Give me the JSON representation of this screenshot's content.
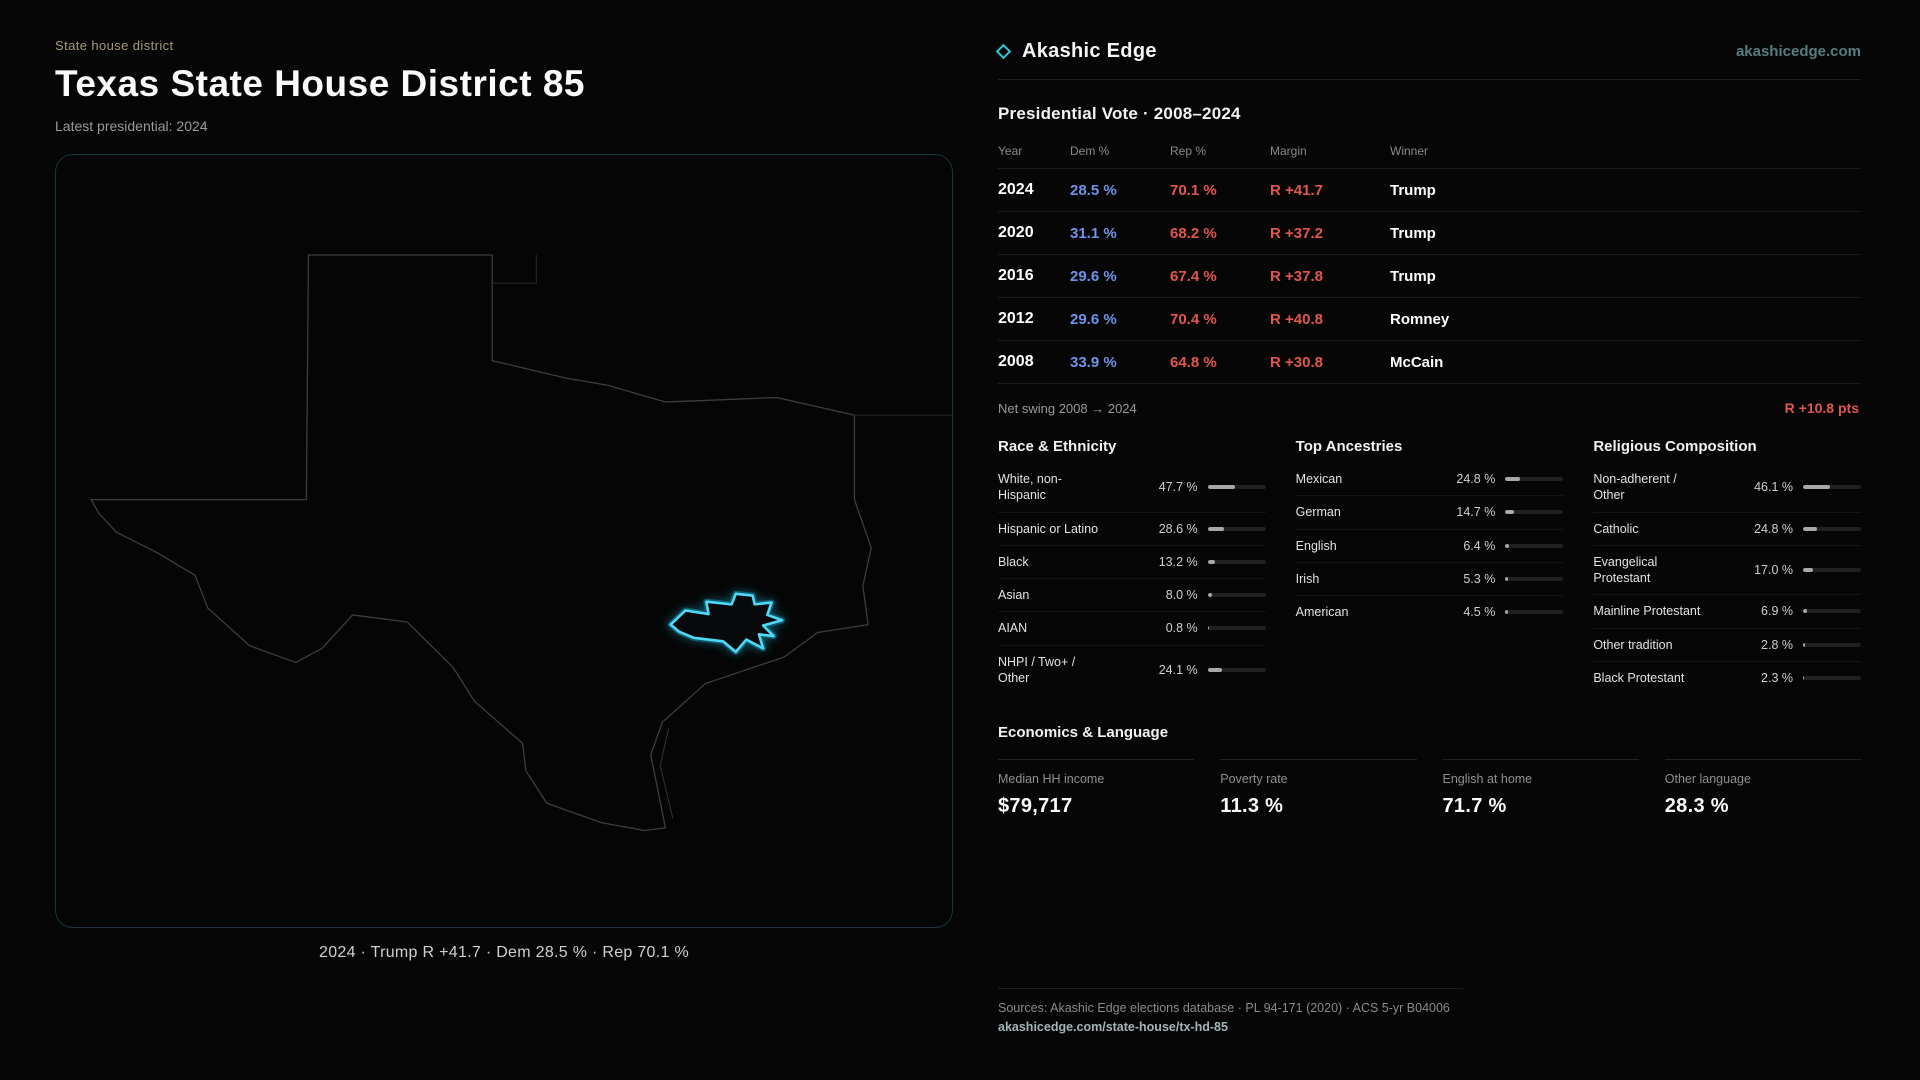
{
  "page": {
    "eyebrow": "State house district",
    "title": "Texas State House District 85",
    "subtitle": "Latest presidential: 2024",
    "map_caption": "2024 · Trump R +41.7 · Dem 28.5 % · Rep 70.1 %"
  },
  "brand": {
    "name": "Akashic Edge",
    "domain": "akashicedge.com"
  },
  "presidential": {
    "title": "Presidential Vote · 2008–2024",
    "columns": [
      "Year",
      "Dem %",
      "Rep %",
      "Margin",
      "Winner"
    ],
    "rows": [
      {
        "year": "2024",
        "dem": "28.5 %",
        "rep": "70.1 %",
        "margin": "R +41.7",
        "winner": "Trump"
      },
      {
        "year": "2020",
        "dem": "31.1 %",
        "rep": "68.2 %",
        "margin": "R +37.2",
        "winner": "Trump"
      },
      {
        "year": "2016",
        "dem": "29.6 %",
        "rep": "67.4 %",
        "margin": "R +37.8",
        "winner": "Trump"
      },
      {
        "year": "2012",
        "dem": "29.6 %",
        "rep": "70.4 %",
        "margin": "R +40.8",
        "winner": "Romney"
      },
      {
        "year": "2008",
        "dem": "33.9 %",
        "rep": "64.8 %",
        "margin": "R +30.8",
        "winner": "McCain"
      }
    ],
    "net_swing_label": "Net swing 2008 → 2024",
    "net_swing_value": "R +10.8 pts"
  },
  "demographics": {
    "race": {
      "title": "Race & Ethnicity",
      "rows": [
        {
          "label": "White, non-Hispanic",
          "value": "47.7 %",
          "pct": 47.7
        },
        {
          "label": "Hispanic or Latino",
          "value": "28.6 %",
          "pct": 28.6
        },
        {
          "label": "Black",
          "value": "13.2 %",
          "pct": 13.2
        },
        {
          "label": "Asian",
          "value": "8.0 %",
          "pct": 8.0
        },
        {
          "label": "AIAN",
          "value": "0.8 %",
          "pct": 0.8
        },
        {
          "label": "NHPI / Two+ / Other",
          "value": "24.1 %",
          "pct": 24.1
        }
      ]
    },
    "ancestries": {
      "title": "Top Ancestries",
      "rows": [
        {
          "label": "Mexican",
          "value": "24.8 %",
          "pct": 24.8
        },
        {
          "label": "German",
          "value": "14.7 %",
          "pct": 14.7
        },
        {
          "label": "English",
          "value": "6.4 %",
          "pct": 6.4
        },
        {
          "label": "Irish",
          "value": "5.3 %",
          "pct": 5.3
        },
        {
          "label": "American",
          "value": "4.5 %",
          "pct": 4.5
        }
      ]
    },
    "religion": {
      "title": "Religious Composition",
      "rows": [
        {
          "label": "Non-adherent / Other",
          "value": "46.1 %",
          "pct": 46.1
        },
        {
          "label": "Catholic",
          "value": "24.8 %",
          "pct": 24.8
        },
        {
          "label": "Evangelical Protestant",
          "value": "17.0 %",
          "pct": 17.0
        },
        {
          "label": "Mainline Protestant",
          "value": "6.9 %",
          "pct": 6.9
        },
        {
          "label": "Other tradition",
          "value": "2.8 %",
          "pct": 2.8
        },
        {
          "label": "Black Protestant",
          "value": "2.3 %",
          "pct": 2.3
        }
      ]
    }
  },
  "economics": {
    "title": "Economics & Language",
    "stats": [
      {
        "label": "Median HH income",
        "value": "$79,717"
      },
      {
        "label": "Poverty rate",
        "value": "11.3 %"
      },
      {
        "label": "English at home",
        "value": "71.7 %"
      },
      {
        "label": "Other language",
        "value": "28.3 %"
      }
    ]
  },
  "footer": {
    "sources": "Sources: Akashic Edge elections database · PL 94-171 (2020) · ACS 5-yr B04006",
    "link": "akashicedge.com/state-house/tx-hd-85"
  },
  "colors": {
    "dem_blue": "#6e93ea",
    "rep_red": "#e2564e",
    "accent_teal": "#2cc8da",
    "district_glow": "#4fd9f6",
    "panel_border": "#16383c",
    "eyebrow_tan": "#a59a7d"
  }
}
